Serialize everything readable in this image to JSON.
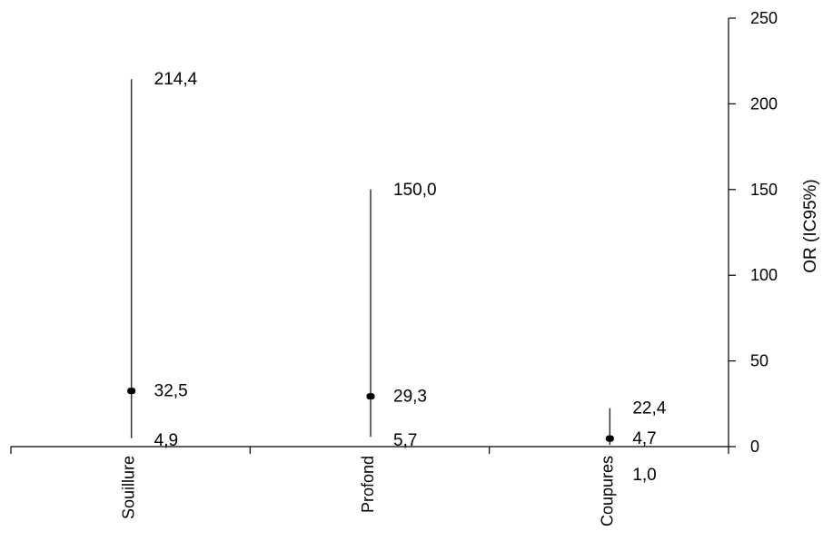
{
  "chart_data": {
    "type": "errorbar",
    "ylabel": "OR (IC95%)",
    "ylim": [
      0,
      250
    ],
    "yticks": [
      0,
      50,
      100,
      150,
      200,
      250
    ],
    "y_axis_position": "right",
    "grid": false,
    "categories": [
      "Souillure",
      "Profond",
      "Coupures"
    ],
    "points": [
      {
        "category": "Souillure",
        "or": 32.5,
        "lower": 4.9,
        "upper": 214.4,
        "or_label": "32,5",
        "lower_label": "4,9",
        "upper_label": "214,4"
      },
      {
        "category": "Profond",
        "or": 29.3,
        "lower": 5.7,
        "upper": 150.0,
        "or_label": "29,3",
        "lower_label": "5,7",
        "upper_label": "150,0"
      },
      {
        "category": "Coupures",
        "or": 4.7,
        "lower": 1.0,
        "upper": 22.4,
        "or_label": "4,7",
        "lower_label": "1,0",
        "upper_label": "22,4"
      }
    ]
  }
}
